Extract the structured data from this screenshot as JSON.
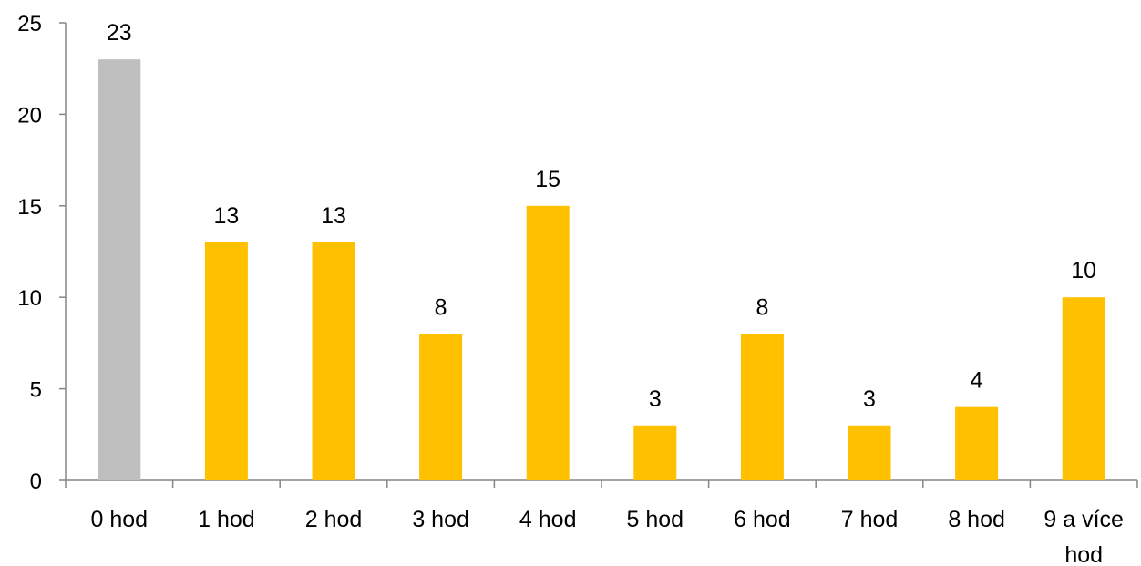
{
  "chart_data": {
    "type": "bar",
    "categories": [
      "0 hod",
      "1 hod",
      "2 hod",
      "3 hod",
      "4 hod",
      "5 hod",
      "6 hod",
      "7 hod",
      "8 hod",
      "9 a více hod"
    ],
    "category_lines": [
      [
        "0 hod"
      ],
      [
        "1 hod"
      ],
      [
        "2 hod"
      ],
      [
        "3 hod"
      ],
      [
        "4 hod"
      ],
      [
        "5 hod"
      ],
      [
        "6 hod"
      ],
      [
        "7 hod"
      ],
      [
        "8 hod"
      ],
      [
        "9 a více",
        "hod"
      ]
    ],
    "values": [
      23,
      13,
      13,
      8,
      15,
      3,
      8,
      3,
      4,
      10
    ],
    "colors": [
      "#BFBFBF",
      "#FFC000",
      "#FFC000",
      "#FFC000",
      "#FFC000",
      "#FFC000",
      "#FFC000",
      "#FFC000",
      "#FFC000",
      "#FFC000"
    ],
    "ylim": [
      0,
      25
    ],
    "yticks": [
      0,
      5,
      10,
      15,
      20,
      25
    ],
    "grid": false,
    "legend": "none",
    "title": "",
    "xlabel": "",
    "ylabel": ""
  }
}
